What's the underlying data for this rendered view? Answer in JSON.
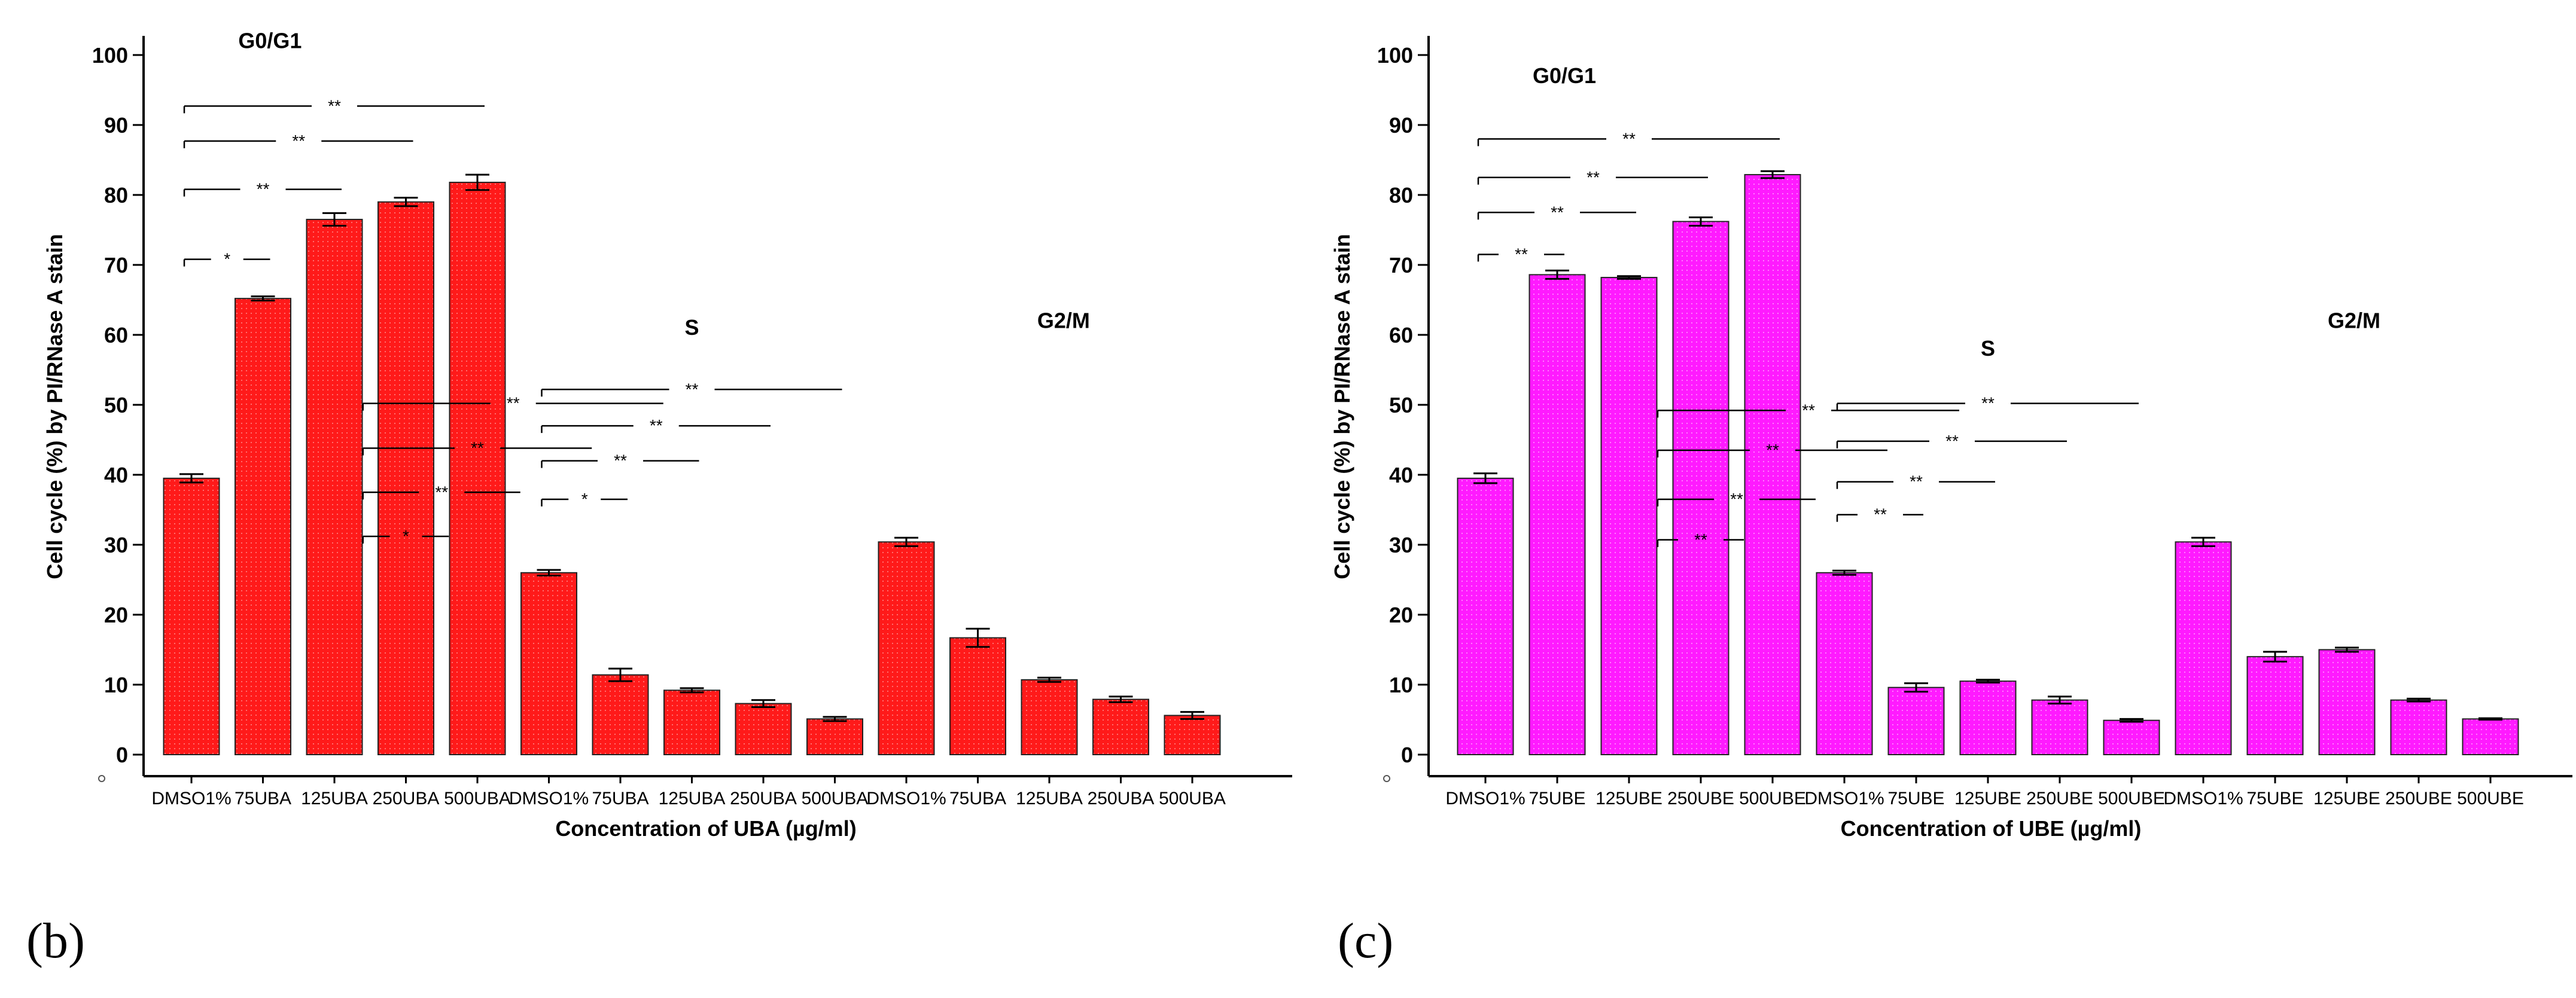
{
  "charts": [
    {
      "panel_label": "(b)",
      "chart_data": {
        "type": "bar",
        "xlabel": "Concentration of UBA (µg/ml)",
        "ylabel": "Cell cycle (%) by PI/RNase A stain",
        "ylim": [
          0,
          100
        ],
        "yticks": [
          "0",
          "10",
          "20",
          "30",
          "40",
          "50",
          "60",
          "70",
          "80",
          "90",
          "100"
        ],
        "bar_color": "#ff1a1a",
        "categories": [
          "DMSO1%",
          "75UBA",
          "125UBA",
          "250UBA",
          "500UBA",
          "DMSO1%",
          "75UBA",
          "125UBA",
          "250UBA",
          "500UBA",
          "DMSO1%",
          "75UBA",
          "125UBA",
          "250UBA",
          "500UBA"
        ],
        "values": [
          39.5,
          65.2,
          76.5,
          79.0,
          81.8,
          26.0,
          11.4,
          9.2,
          7.3,
          5.1,
          30.4,
          16.7,
          10.7,
          7.9,
          5.6
        ],
        "errors": [
          0.6,
          0.3,
          0.9,
          0.6,
          1.1,
          0.4,
          0.9,
          0.3,
          0.5,
          0.3,
          0.6,
          1.3,
          0.3,
          0.4,
          0.5
        ],
        "groups": [
          {
            "label": "G0/G1",
            "label_y": 101
          },
          {
            "label": "S",
            "label_y": 60
          },
          {
            "label": "G2/M",
            "label_y": 61
          }
        ],
        "comparisons": [
          {
            "from": 0,
            "to": 2,
            "y": 70.8,
            "label": "*"
          },
          {
            "from": 0,
            "to": 4,
            "y": 80.8,
            "label": "**"
          },
          {
            "from": 0,
            "to": 6,
            "y": 87.7,
            "label": "**"
          },
          {
            "from": 0,
            "to": 8,
            "y": 92.7,
            "label": "**"
          },
          {
            "from": 5,
            "to": 7,
            "y": 31.2,
            "label": "*"
          },
          {
            "from": 5,
            "to": 9,
            "y": 37.5,
            "label": "**"
          },
          {
            "from": 5,
            "to": 11,
            "y": 43.8,
            "label": "**"
          },
          {
            "from": 5,
            "to": 13,
            "y": 50.2,
            "label": "**"
          },
          {
            "from": 10,
            "to": 12,
            "y": 36.5,
            "label": "*"
          },
          {
            "from": 10,
            "to": 14,
            "y": 42.0,
            "label": "**"
          },
          {
            "from": 10,
            "to": 16,
            "y": 47.0,
            "label": "**"
          },
          {
            "from": 10,
            "to": 18,
            "y": 52.2,
            "label": "**"
          }
        ]
      }
    },
    {
      "panel_label": "(c)",
      "chart_data": {
        "type": "bar",
        "xlabel": "Concentration of UBE (µg/ml)",
        "ylabel": "Cell cycle (%) by PI/RNase A stain",
        "ylim": [
          0,
          100
        ],
        "yticks": [
          "0",
          "10",
          "20",
          "30",
          "40",
          "50",
          "60",
          "70",
          "80",
          "90",
          "100"
        ],
        "bar_color": "#ff1aff",
        "categories": [
          "DMSO1%",
          "75UBE",
          "125UBE",
          "250UBE",
          "500UBE",
          "DMSO1%",
          "75UBE",
          "125UBE",
          "250UBE",
          "500UBE",
          "DMSO1%",
          "75UBE",
          "125UBE",
          "250UBE",
          "500UBE"
        ],
        "values": [
          39.5,
          68.6,
          68.2,
          76.2,
          82.9,
          26.0,
          9.6,
          10.5,
          7.8,
          4.9,
          30.4,
          14.0,
          15.0,
          7.8,
          5.1
        ],
        "errors": [
          0.7,
          0.6,
          0.2,
          0.6,
          0.5,
          0.3,
          0.6,
          0.2,
          0.5,
          0.2,
          0.6,
          0.7,
          0.3,
          0.2,
          0.1
        ],
        "groups": [
          {
            "label": "G0/G1",
            "label_y": 96
          },
          {
            "label": "S",
            "label_y": 57
          },
          {
            "label": "G2/M",
            "label_y": 61
          }
        ],
        "comparisons": [
          {
            "from": 0,
            "to": 2,
            "y": 71.5,
            "label": "**"
          },
          {
            "from": 0,
            "to": 4,
            "y": 77.5,
            "label": "**"
          },
          {
            "from": 0,
            "to": 6,
            "y": 82.5,
            "label": "**"
          },
          {
            "from": 0,
            "to": 8,
            "y": 88.0,
            "label": "**"
          },
          {
            "from": 5,
            "to": 7,
            "y": 30.7,
            "label": "**"
          },
          {
            "from": 5,
            "to": 9,
            "y": 36.5,
            "label": "**"
          },
          {
            "from": 5,
            "to": 11,
            "y": 43.5,
            "label": "**"
          },
          {
            "from": 5,
            "to": 13,
            "y": 49.2,
            "label": "**"
          },
          {
            "from": 10,
            "to": 12,
            "y": 34.3,
            "label": "**"
          },
          {
            "from": 10,
            "to": 14,
            "y": 39.0,
            "label": "**"
          },
          {
            "from": 10,
            "to": 16,
            "y": 44.8,
            "label": "**"
          },
          {
            "from": 10,
            "to": 18,
            "y": 50.2,
            "label": "**"
          }
        ]
      }
    }
  ]
}
